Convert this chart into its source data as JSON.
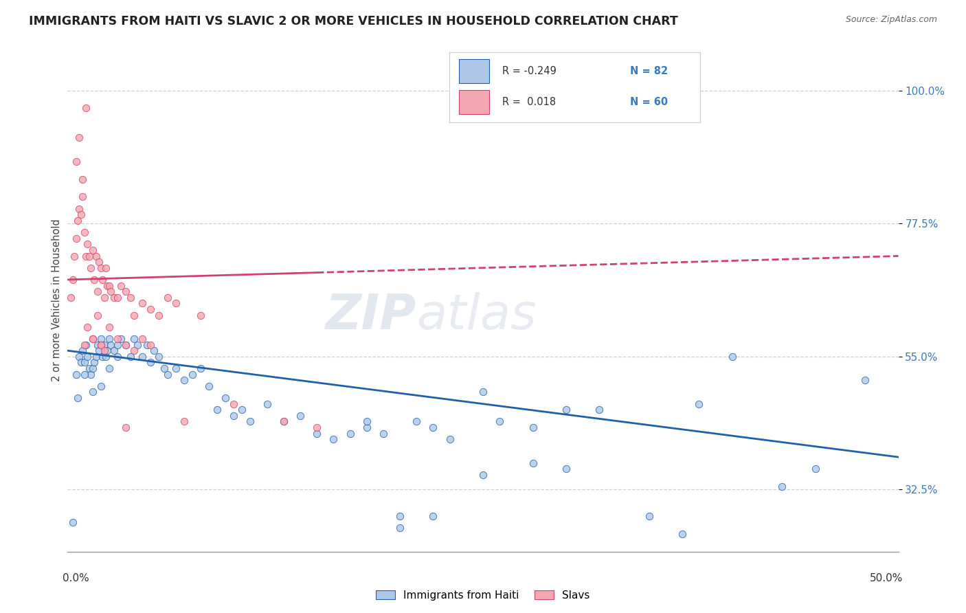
{
  "title": "IMMIGRANTS FROM HAITI VS SLAVIC 2 OR MORE VEHICLES IN HOUSEHOLD CORRELATION CHART",
  "source": "Source: ZipAtlas.com",
  "ylabel": "2 or more Vehicles in Household",
  "yticks": [
    32.5,
    55.0,
    77.5,
    100.0
  ],
  "ytick_labels": [
    "32.5%",
    "55.0%",
    "77.5%",
    "100.0%"
  ],
  "xlim": [
    0.0,
    50.0
  ],
  "ylim": [
    22.0,
    107.0
  ],
  "color_haiti": "#aec6e8",
  "color_slavic": "#f4a7b0",
  "color_trendline_haiti": "#2060a8",
  "color_trendline_slavic": "#d04070",
  "color_text_blue": "#3a7abf",
  "haiti_x": [
    0.3,
    0.5,
    0.7,
    0.8,
    0.9,
    1.0,
    1.1,
    1.2,
    1.3,
    1.4,
    1.5,
    1.6,
    1.7,
    1.8,
    1.9,
    2.0,
    2.1,
    2.2,
    2.3,
    2.4,
    2.5,
    2.6,
    2.8,
    3.0,
    3.2,
    3.5,
    3.8,
    4.0,
    4.2,
    4.5,
    4.8,
    5.0,
    5.2,
    5.5,
    5.8,
    6.0,
    6.5,
    7.0,
    7.5,
    8.0,
    8.5,
    9.0,
    9.5,
    10.0,
    10.5,
    11.0,
    12.0,
    13.0,
    14.0,
    15.0,
    16.0,
    17.0,
    18.0,
    19.0,
    20.0,
    21.0,
    22.0,
    23.0,
    25.0,
    26.0,
    28.0,
    30.0,
    32.0,
    35.0,
    37.0,
    38.0,
    40.0,
    43.0,
    45.0,
    48.0,
    18.0,
    20.0,
    22.0,
    25.0,
    28.0,
    30.0,
    0.6,
    1.0,
    1.5,
    2.0,
    2.5,
    3.0
  ],
  "haiti_y": [
    27.0,
    52.0,
    55.0,
    54.0,
    56.0,
    54.0,
    57.0,
    55.0,
    53.0,
    52.0,
    53.0,
    54.0,
    55.0,
    57.0,
    56.0,
    58.0,
    55.0,
    57.0,
    55.0,
    56.0,
    58.0,
    57.0,
    56.0,
    57.0,
    58.0,
    57.0,
    55.0,
    58.0,
    57.0,
    55.0,
    57.0,
    54.0,
    56.0,
    55.0,
    53.0,
    52.0,
    53.0,
    51.0,
    52.0,
    53.0,
    50.0,
    46.0,
    48.0,
    45.0,
    46.0,
    44.0,
    47.0,
    44.0,
    45.0,
    42.0,
    41.0,
    42.0,
    43.0,
    42.0,
    26.0,
    44.0,
    28.0,
    41.0,
    49.0,
    44.0,
    37.0,
    36.0,
    46.0,
    28.0,
    25.0,
    47.0,
    55.0,
    33.0,
    36.0,
    51.0,
    44.0,
    28.0,
    43.0,
    35.0,
    43.0,
    46.0,
    48.0,
    52.0,
    49.0,
    50.0,
    53.0,
    55.0
  ],
  "slavic_x": [
    0.2,
    0.3,
    0.4,
    0.5,
    0.6,
    0.7,
    0.8,
    0.9,
    1.0,
    1.0,
    1.1,
    1.2,
    1.3,
    1.4,
    1.5,
    1.5,
    1.6,
    1.7,
    1.8,
    1.9,
    2.0,
    2.0,
    2.1,
    2.2,
    2.3,
    2.4,
    2.5,
    2.6,
    2.8,
    3.0,
    3.2,
    3.5,
    3.8,
    4.0,
    4.5,
    5.0,
    5.5,
    6.0,
    6.5,
    7.0,
    8.0,
    10.0,
    13.0,
    15.0,
    1.2,
    1.5,
    1.8,
    2.0,
    2.2,
    2.5,
    3.0,
    3.5,
    4.0,
    4.5,
    5.0,
    0.5,
    0.7,
    0.9,
    1.1,
    3.5
  ],
  "slavic_y": [
    65.0,
    68.0,
    72.0,
    75.0,
    78.0,
    80.0,
    79.0,
    82.0,
    76.0,
    57.0,
    72.0,
    74.0,
    72.0,
    70.0,
    73.0,
    58.0,
    68.0,
    72.0,
    66.0,
    71.0,
    70.0,
    57.0,
    68.0,
    65.0,
    70.0,
    67.0,
    67.0,
    66.0,
    65.0,
    65.0,
    67.0,
    66.0,
    65.0,
    62.0,
    64.0,
    63.0,
    62.0,
    65.0,
    64.0,
    44.0,
    62.0,
    47.0,
    44.0,
    43.0,
    60.0,
    58.0,
    62.0,
    57.0,
    56.0,
    60.0,
    58.0,
    57.0,
    56.0,
    58.0,
    57.0,
    88.0,
    92.0,
    85.0,
    97.0,
    43.0
  ],
  "fig_width": 14.06,
  "fig_height": 8.92,
  "background_color": "#ffffff",
  "trendline_haiti_x0": 0.0,
  "trendline_haiti_x1": 50.0,
  "trendline_haiti_y0": 56.0,
  "trendline_haiti_y1": 38.0,
  "trendline_slavic_x0": 0.0,
  "trendline_slavic_x1": 50.0,
  "trendline_slavic_y0": 68.0,
  "trendline_slavic_y1": 72.0
}
